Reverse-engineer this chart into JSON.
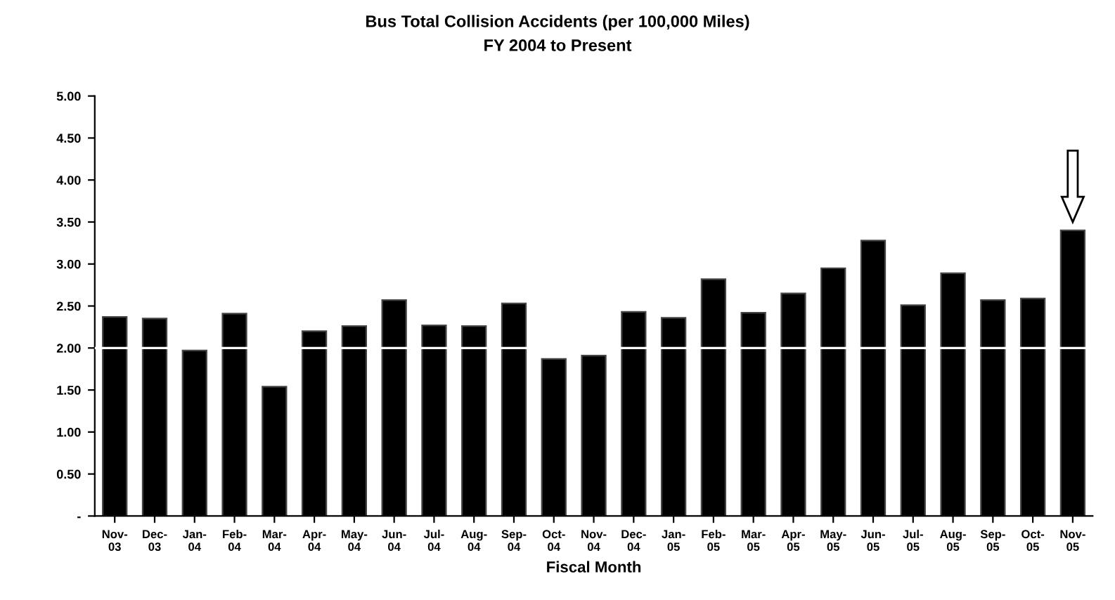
{
  "chart_data": {
    "type": "bar",
    "title": "Bus Total Collision Accidents (per 100,000 Miles)",
    "subtitle": "FY 2004 to Present",
    "xlabel": "Fiscal Month",
    "categories": [
      "Nov-\n03",
      "Dec-\n03",
      "Jan-\n04",
      "Feb-\n04",
      "Mar-\n04",
      "Apr-\n04",
      "May-\n04",
      "Jun-\n04",
      "Jul-\n04",
      "Aug-\n04",
      "Sep-\n04",
      "Oct-\n04",
      "Nov-\n04",
      "Dec-\n04",
      "Jan-\n05",
      "Feb-\n05",
      "Mar-\n05",
      "Apr-\n05",
      "May-\n05",
      "Jun-\n05",
      "Jul-\n05",
      "Aug-\n05",
      "Sep-\n05",
      "Oct-\n05",
      "Nov-\n05"
    ],
    "values": [
      2.37,
      2.35,
      1.97,
      2.41,
      1.54,
      2.2,
      2.26,
      2.57,
      2.27,
      2.26,
      2.53,
      1.87,
      1.91,
      2.43,
      2.36,
      2.82,
      2.42,
      2.65,
      2.95,
      3.28,
      2.51,
      2.89,
      2.57,
      2.59,
      3.4
    ],
    "color": "#000000",
    "ylim": [
      0,
      5
    ],
    "yticks": [
      {
        "value": 0,
        "label": "-"
      },
      {
        "value": 0.5,
        "label": "0.50"
      },
      {
        "value": 1,
        "label": "1.00"
      },
      {
        "value": 1.5,
        "label": "1.50"
      },
      {
        "value": 2,
        "label": "2.00"
      },
      {
        "value": 2.5,
        "label": "2.50"
      },
      {
        "value": 3,
        "label": "3.00"
      },
      {
        "value": 3.5,
        "label": "3.50"
      },
      {
        "value": 4,
        "label": "4.00"
      },
      {
        "value": 4.5,
        "label": "4.50"
      },
      {
        "value": 5,
        "label": "5.00"
      }
    ],
    "ref_lines": [
      {
        "axis": "y",
        "value": 2,
        "color": "#ffffff"
      }
    ],
    "grid": false,
    "legend": false
  }
}
